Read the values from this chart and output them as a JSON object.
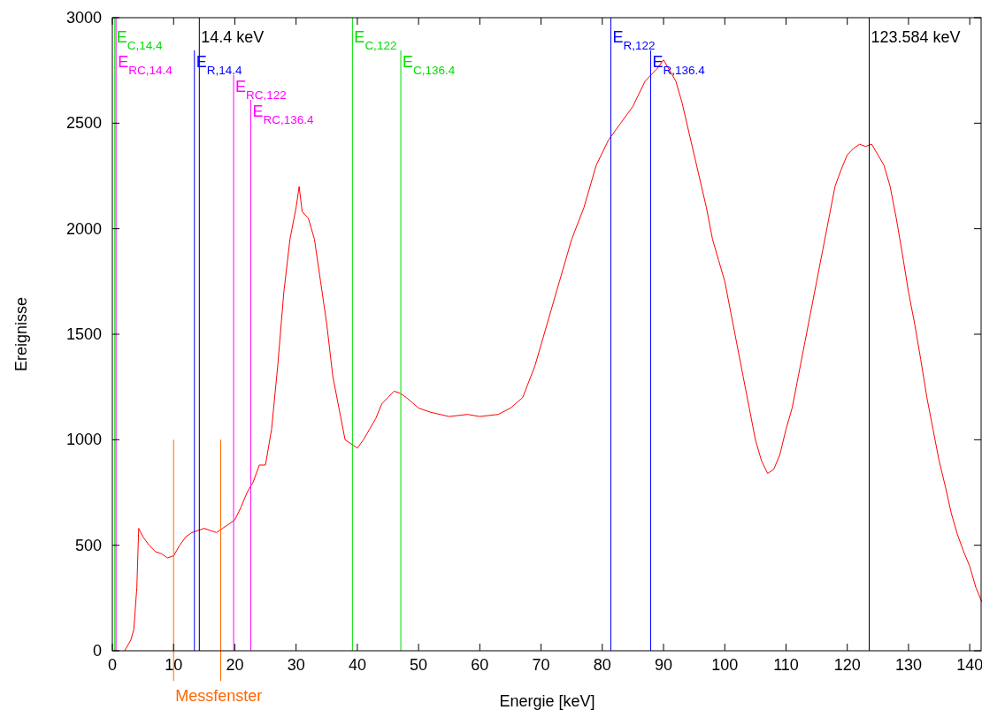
{
  "chart_data": {
    "type": "line",
    "xlabel": "Energie [keV]",
    "ylabel": "Ereignisse",
    "xlim": [
      0,
      142
    ],
    "xticks": [
      0,
      10,
      20,
      30,
      40,
      50,
      60,
      70,
      80,
      90,
      100,
      110,
      120,
      130,
      140
    ],
    "ylim": [
      0,
      3000
    ],
    "yticks": [
      0,
      500,
      1000,
      1500,
      2000,
      2500,
      3000
    ],
    "grid": false,
    "marker": "none",
    "line_style": "solid",
    "series": [
      {
        "color": "#ff0000",
        "x": [
          2,
          3,
          3.5,
          4,
          4.3,
          5,
          6,
          7,
          8,
          9,
          10,
          11,
          12,
          13,
          14,
          15,
          16,
          17,
          18,
          19,
          20,
          21,
          22,
          23,
          24,
          25,
          26,
          27,
          28,
          29,
          30,
          30.5,
          31,
          32,
          33,
          34,
          35,
          36,
          37,
          38,
          39,
          40,
          41,
          42,
          43,
          44,
          45,
          46,
          47,
          48,
          50,
          52,
          55,
          58,
          60,
          63,
          65,
          67,
          69,
          71,
          73,
          75,
          77,
          79,
          81,
          83,
          85,
          87,
          89,
          90,
          91,
          92,
          93,
          95,
          97,
          98,
          99,
          100,
          101,
          102,
          103,
          104,
          105,
          106,
          107,
          108,
          109,
          110,
          111,
          112,
          113,
          114,
          115,
          116,
          117,
          118,
          119,
          120,
          121,
          122,
          123,
          124,
          125,
          126,
          127,
          128,
          129,
          130,
          131,
          132,
          133,
          134,
          135,
          136,
          137,
          138,
          139,
          140,
          141,
          142
        ],
        "values": [
          0,
          50,
          100,
          300,
          580,
          540,
          500,
          470,
          460,
          440,
          450,
          500,
          540,
          560,
          570,
          580,
          570,
          560,
          580,
          600,
          620,
          680,
          750,
          800,
          880,
          880,
          1050,
          1350,
          1700,
          1950,
          2100,
          2200,
          2080,
          2050,
          1950,
          1750,
          1550,
          1300,
          1150,
          1000,
          980,
          960,
          1000,
          1050,
          1100,
          1170,
          1200,
          1230,
          1220,
          1200,
          1150,
          1130,
          1110,
          1120,
          1110,
          1120,
          1150,
          1200,
          1350,
          1550,
          1750,
          1950,
          2100,
          2300,
          2420,
          2500,
          2580,
          2700,
          2760,
          2800,
          2750,
          2700,
          2600,
          2350,
          2100,
          1950,
          1850,
          1750,
          1600,
          1450,
          1300,
          1150,
          1000,
          900,
          840,
          860,
          930,
          1050,
          1150,
          1300,
          1450,
          1600,
          1750,
          1900,
          2050,
          2200,
          2280,
          2350,
          2380,
          2400,
          2390,
          2400,
          2350,
          2300,
          2200,
          2050,
          1880,
          1700,
          1550,
          1380,
          1200,
          1050,
          900,
          780,
          650,
          550,
          470,
          400,
          300,
          230
        ]
      }
    ],
    "ref_lines": [
      {
        "axis": "x",
        "value": 0.4,
        "label": "E$_{C,14.4}$",
        "color": "#00dd00"
      },
      {
        "axis": "x",
        "value": 0.6,
        "label": "E$_{RC,14.4}$",
        "color": "#ff00ff"
      },
      {
        "axis": "x",
        "value": 14.2,
        "label": "14.4 keV",
        "color": "#000000"
      },
      {
        "axis": "x",
        "value": 13.4,
        "label": "E$_{R,14.4}$",
        "color": "#0000ff"
      },
      {
        "axis": "x",
        "value": 19.8,
        "label": "E$_{RC,122}$",
        "color": "#ff00ff"
      },
      {
        "axis": "x",
        "value": 22.6,
        "label": "E$_{RC,136.4}$",
        "color": "#ff00ff"
      },
      {
        "axis": "x",
        "value": 39.2,
        "label": "E$_{C,122}$",
        "color": "#00dd00"
      },
      {
        "axis": "x",
        "value": 47.1,
        "label": "E$_{C,136.4}$",
        "color": "#00dd00"
      },
      {
        "axis": "x",
        "value": 81.4,
        "label": "E$_{R,122}$",
        "color": "#0000ff"
      },
      {
        "axis": "x",
        "value": 87.9,
        "label": "E$_{R,136.4}$",
        "color": "#0000ff"
      },
      {
        "axis": "x",
        "value": 123.584,
        "label": "123.584 keV",
        "color": "#000000"
      },
      {
        "axis": "x",
        "value": 10,
        "label": "Messfenster",
        "color": "#ff6600"
      },
      {
        "axis": "x",
        "value": 17.7,
        "color": "#ff6600"
      }
    ]
  }
}
